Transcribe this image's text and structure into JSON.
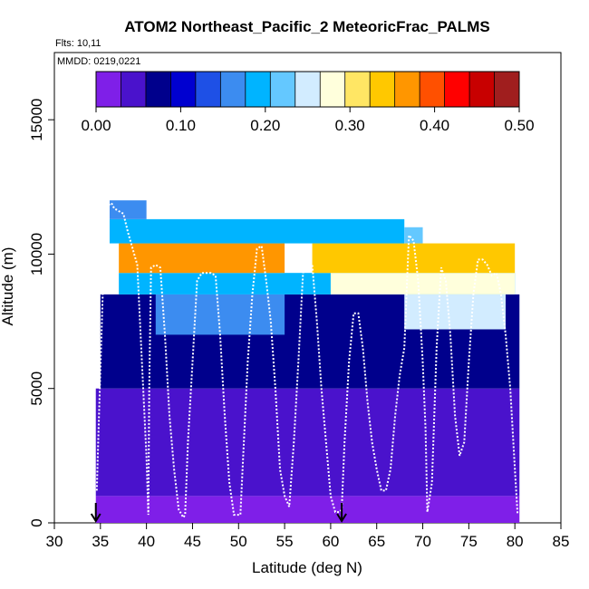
{
  "chart_data": {
    "type": "heatmap",
    "title": "ATOM2 Northeast_Pacific_2 MeteoricFrac_PALMS",
    "subtitle_lines": [
      "Flts: 10,11",
      "MMDD: 0219,0221"
    ],
    "xlabel": "Latitude (deg N)",
    "ylabel": "Altitude (m)",
    "xlim": [
      30,
      85
    ],
    "ylim": [
      0,
      17500
    ],
    "x_ticks": [
      30,
      35,
      40,
      45,
      50,
      55,
      60,
      65,
      70,
      75,
      80,
      85
    ],
    "y_ticks": [
      0,
      5000,
      10000,
      15000
    ],
    "colorbar": {
      "range": [
        0.0,
        0.5
      ],
      "tick_values": [
        0.0,
        0.1,
        0.2,
        0.3,
        0.4,
        0.5
      ],
      "tick_labels": [
        "0.00",
        "0.10",
        "0.20",
        "0.30",
        "0.40",
        "0.50"
      ],
      "colors": [
        "#7f1fe8",
        "#4a12cc",
        "#00008c",
        "#0000d0",
        "#1e50e6",
        "#3c8cf0",
        "#00b4ff",
        "#64c8ff",
        "#d2ecff",
        "#ffffdc",
        "#ffe664",
        "#ffc800",
        "#ff9600",
        "#ff5000",
        "#ff0000",
        "#c80000",
        "#a01e1e"
      ]
    },
    "arrow_markers_x": [
      34.5,
      61.2
    ],
    "layers": [
      {
        "y0": 0,
        "y1": 1000,
        "x0": 34.5,
        "x1": 80.5,
        "value": 0.01
      },
      {
        "y0": 1000,
        "y1": 5000,
        "x0": 34.5,
        "x1": 80.5,
        "value": 0.03
      },
      {
        "y0": 5000,
        "y1": 8500,
        "x0": 35.0,
        "x1": 80.5,
        "value": 0.07
      },
      {
        "y0": 7000,
        "y1": 8500,
        "x0": 41.0,
        "x1": 55.0,
        "value": 0.15
      },
      {
        "y0": 7200,
        "y1": 8500,
        "x0": 68.0,
        "x1": 79.0,
        "value": 0.24
      },
      {
        "y0": 8500,
        "y1": 9300,
        "x0": 37.0,
        "x1": 80.0,
        "value": 0.18
      },
      {
        "y0": 8500,
        "y1": 9300,
        "x0": 60.0,
        "x1": 80.0,
        "value": 0.27
      },
      {
        "y0": 9300,
        "y1": 10400,
        "x0": 37.0,
        "x1": 55.0,
        "value": 0.37
      },
      {
        "y0": 9300,
        "y1": 10400,
        "x0": 58.0,
        "x1": 80.0,
        "value": 0.34
      },
      {
        "y0": 10400,
        "y1": 11300,
        "x0": 36.0,
        "x1": 68.0,
        "value": 0.2
      },
      {
        "y0": 10400,
        "y1": 11000,
        "x0": 68.0,
        "x1": 70.0,
        "value": 0.23
      },
      {
        "y0": 11300,
        "y1": 12000,
        "x0": 36.0,
        "x1": 40.0,
        "value": 0.17
      }
    ],
    "flight_track": {
      "x": [
        34.6,
        34.8,
        35.2,
        35.5,
        35.8,
        36.2,
        36.5,
        37.0,
        37.5,
        38.0,
        38.5,
        39.0,
        39.5,
        40.0,
        40.2,
        40.3,
        40.5,
        41.0,
        41.5,
        42.0,
        42.5,
        43.0,
        43.5,
        44.0,
        44.2,
        44.5,
        45.0,
        45.5,
        46.0,
        46.5,
        47.0,
        47.5,
        48.0,
        48.5,
        49.0,
        49.5,
        49.8,
        50.2,
        50.5,
        51.0,
        51.5,
        52.0,
        52.5,
        53.0,
        53.5,
        54.0,
        54.5,
        55.0,
        55.5,
        56.0,
        56.5,
        57.0,
        57.5,
        58.0,
        58.5,
        59.0,
        59.5,
        60.0,
        60.5,
        61.0,
        61.2,
        61.5,
        62.0,
        62.5,
        63.0,
        63.5,
        64.0,
        64.5,
        65.0,
        65.5,
        66.0,
        66.5,
        67.0,
        67.5,
        68.0,
        68.5,
        69.0,
        69.5,
        70.0,
        70.3,
        70.5,
        71.0,
        71.5,
        72.0,
        72.5,
        73.0,
        73.5,
        74.0,
        74.5,
        75.0,
        75.5,
        76.0,
        76.5,
        77.0,
        77.5,
        78.0,
        78.5,
        79.0,
        79.5,
        80.0,
        80.3
      ],
      "y": [
        1200,
        3500,
        8000,
        11300,
        11800,
        11900,
        11700,
        11600,
        11500,
        10800,
        10200,
        9600,
        6000,
        2500,
        300,
        5000,
        9500,
        9600,
        9500,
        7000,
        4000,
        2000,
        500,
        200,
        300,
        3000,
        6000,
        9000,
        9300,
        9300,
        9300,
        9200,
        7000,
        4000,
        1500,
        300,
        300,
        300,
        2500,
        6000,
        8500,
        10200,
        10300,
        9000,
        7500,
        5000,
        2000,
        1000,
        600,
        3000,
        6000,
        9300,
        9600,
        9600,
        7500,
        5000,
        3000,
        1000,
        400,
        400,
        500,
        3000,
        6000,
        7800,
        7800,
        6500,
        4500,
        3000,
        2000,
        1200,
        1200,
        2000,
        4000,
        5500,
        6500,
        10700,
        10500,
        9000,
        6000,
        3500,
        400,
        1500,
        6500,
        9500,
        9000,
        7000,
        4000,
        2500,
        3000,
        6000,
        8500,
        9800,
        9800,
        9600,
        9200,
        9300,
        8500,
        7000,
        5000,
        2000,
        300
      ]
    }
  }
}
